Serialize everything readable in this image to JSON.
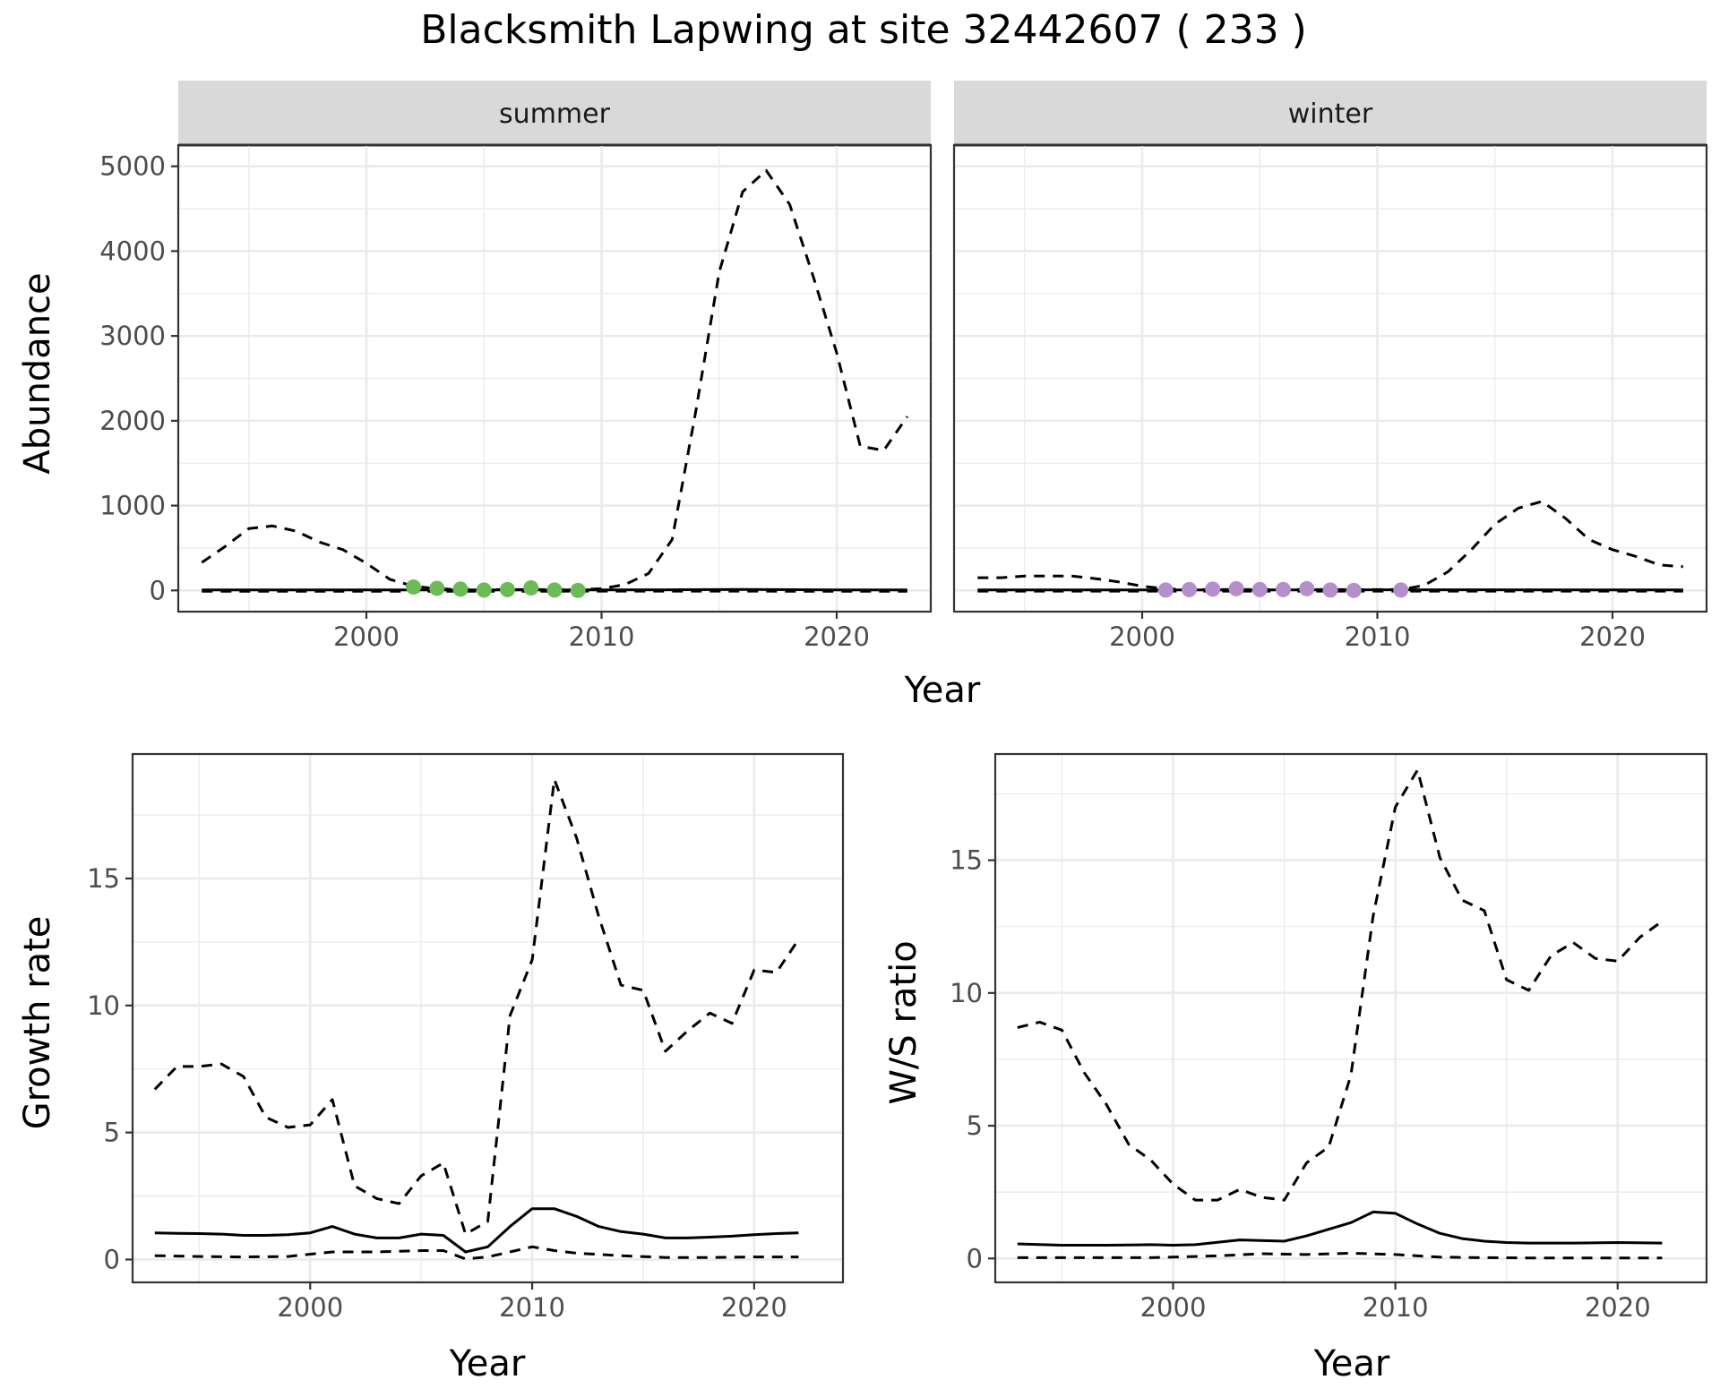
{
  "title": "Blacksmith Lapwing at site 32442607 ( 233 )",
  "colors": {
    "summer_points": "#6cbb57",
    "winter_points": "#b48fcc",
    "strip_bg": "#d9d9d9",
    "line": "#000000"
  },
  "chart_data": [
    {
      "id": "abundance-summer",
      "type": "line",
      "facet": "summer",
      "xlabel": "",
      "ylabel": "Abundance",
      "xlim": [
        1992,
        2024
      ],
      "ylim": [
        -250,
        5250
      ],
      "xticks": [
        2000,
        2010,
        2020
      ],
      "yticks": [
        0,
        1000,
        2000,
        3000,
        4000,
        5000
      ],
      "series": [
        {
          "name": "upper",
          "style": "dashed",
          "x": [
            1993,
            1994,
            1995,
            1996,
            1997,
            1998,
            1999,
            2000,
            2001,
            2002,
            2003,
            2004,
            2005,
            2006,
            2007,
            2008,
            2009,
            2010,
            2011,
            2012,
            2013,
            2014,
            2015,
            2016,
            2017,
            2018,
            2019,
            2020,
            2021,
            2022,
            2023
          ],
          "y": [
            330,
            520,
            730,
            760,
            700,
            570,
            480,
            320,
            130,
            50,
            20,
            10,
            10,
            10,
            10,
            10,
            10,
            20,
            70,
            200,
            600,
            2100,
            3750,
            4700,
            4950,
            4550,
            3700,
            2800,
            1700,
            1650,
            2050
          ]
        },
        {
          "name": "mean",
          "style": "solid",
          "x": [
            1993,
            1998,
            2003,
            2008,
            2013,
            2016,
            2020,
            2023
          ],
          "y": [
            5,
            6,
            6,
            5,
            8,
            12,
            6,
            5
          ]
        },
        {
          "name": "lower",
          "style": "dashed",
          "x": [
            1993,
            2003,
            2013,
            2023
          ],
          "y": [
            -10,
            -10,
            -8,
            -10
          ]
        },
        {
          "name": "observed",
          "style": "points",
          "x": [
            2002,
            2003,
            2004,
            2005,
            2006,
            2007,
            2008,
            2009
          ],
          "y": [
            40,
            25,
            15,
            5,
            10,
            30,
            5,
            0
          ]
        }
      ]
    },
    {
      "id": "abundance-winter",
      "type": "line",
      "facet": "winter",
      "xlabel": "Year",
      "ylabel": "",
      "xlim": [
        1992,
        2024
      ],
      "ylim": [
        -250,
        5250
      ],
      "xticks": [
        2000,
        2010,
        2020
      ],
      "yticks": [],
      "series": [
        {
          "name": "upper",
          "style": "dashed",
          "x": [
            1993,
            1994,
            1995,
            1996,
            1997,
            1998,
            1999,
            2000,
            2001,
            2002,
            2003,
            2004,
            2005,
            2006,
            2007,
            2008,
            2009,
            2010,
            2011,
            2012,
            2013,
            2014,
            2015,
            2016,
            2017,
            2018,
            2019,
            2020,
            2021,
            2022,
            2023
          ],
          "y": [
            150,
            150,
            170,
            170,
            170,
            140,
            100,
            50,
            20,
            10,
            10,
            10,
            10,
            10,
            10,
            10,
            10,
            10,
            10,
            60,
            220,
            480,
            780,
            970,
            1050,
            850,
            600,
            480,
            400,
            300,
            280
          ]
        },
        {
          "name": "mean",
          "style": "solid",
          "x": [
            1993,
            2003,
            2013,
            2023
          ],
          "y": [
            5,
            5,
            8,
            5
          ]
        },
        {
          "name": "lower",
          "style": "dashed",
          "x": [
            1993,
            2003,
            2013,
            2023
          ],
          "y": [
            -8,
            -8,
            -8,
            -8
          ]
        },
        {
          "name": "observed",
          "style": "points",
          "x": [
            2001,
            2002,
            2003,
            2004,
            2005,
            2006,
            2007,
            2008,
            2009,
            2011
          ],
          "y": [
            5,
            10,
            15,
            20,
            10,
            10,
            20,
            5,
            0,
            5
          ]
        }
      ]
    },
    {
      "id": "growth-rate",
      "type": "line",
      "xlabel": "Year",
      "ylabel": "Growth rate",
      "xlim": [
        1992,
        2024
      ],
      "ylim": [
        -0.9,
        19.9
      ],
      "xticks": [
        2000,
        2010,
        2020
      ],
      "yticks": [
        0,
        5,
        10,
        15
      ],
      "series": [
        {
          "name": "upper",
          "style": "dashed",
          "x": [
            1993,
            1994,
            1995,
            1996,
            1997,
            1998,
            1999,
            2000,
            2001,
            2002,
            2003,
            2004,
            2005,
            2006,
            2007,
            2008,
            2009,
            2010,
            2011,
            2012,
            2013,
            2014,
            2015,
            2016,
            2017,
            2018,
            2019,
            2020,
            2021,
            2022
          ],
          "y": [
            6.7,
            7.6,
            7.6,
            7.7,
            7.2,
            5.6,
            5.2,
            5.3,
            6.3,
            2.9,
            2.4,
            2.2,
            3.3,
            3.8,
            1.0,
            1.5,
            9.6,
            11.8,
            18.9,
            16.6,
            13.5,
            10.8,
            10.6,
            8.2,
            9.0,
            9.7,
            9.3,
            11.4,
            11.3,
            12.6
          ]
        },
        {
          "name": "mean",
          "style": "solid",
          "x": [
            1993,
            1994,
            1995,
            1996,
            1997,
            1998,
            1999,
            2000,
            2001,
            2002,
            2003,
            2004,
            2005,
            2006,
            2007,
            2008,
            2009,
            2010,
            2011,
            2012,
            2013,
            2014,
            2015,
            2016,
            2017,
            2018,
            2019,
            2020,
            2021,
            2022
          ],
          "y": [
            1.05,
            1.03,
            1.02,
            1.0,
            0.95,
            0.95,
            0.98,
            1.05,
            1.3,
            1.0,
            0.85,
            0.85,
            1.0,
            0.95,
            0.3,
            0.5,
            1.3,
            2.0,
            2.0,
            1.7,
            1.3,
            1.1,
            1.0,
            0.85,
            0.85,
            0.88,
            0.92,
            0.98,
            1.02,
            1.05
          ]
        },
        {
          "name": "lower",
          "style": "dashed",
          "x": [
            1993,
            1995,
            1997,
            1999,
            2001,
            2003,
            2005,
            2006,
            2007,
            2008,
            2009,
            2010,
            2011,
            2012,
            2014,
            2016,
            2018,
            2020,
            2022
          ],
          "y": [
            0.15,
            0.12,
            0.1,
            0.12,
            0.3,
            0.3,
            0.35,
            0.35,
            0.02,
            0.1,
            0.3,
            0.5,
            0.35,
            0.25,
            0.15,
            0.08,
            0.08,
            0.1,
            0.1
          ]
        }
      ]
    },
    {
      "id": "ws-ratio",
      "type": "line",
      "xlabel": "Year",
      "ylabel": "W/S ratio",
      "xlim": [
        1992,
        2024
      ],
      "ylim": [
        -0.9,
        19.0
      ],
      "xticks": [
        2000,
        2010,
        2020
      ],
      "yticks": [
        0,
        5,
        10,
        15
      ],
      "series": [
        {
          "name": "upper",
          "style": "dashed",
          "x": [
            1993,
            1994,
            1995,
            1996,
            1997,
            1998,
            1999,
            2000,
            2001,
            2002,
            2003,
            2004,
            2005,
            2006,
            2007,
            2008,
            2009,
            2010,
            2011,
            2012,
            2013,
            2014,
            2015,
            2016,
            2017,
            2018,
            2019,
            2020,
            2021,
            2022
          ],
          "y": [
            8.7,
            8.9,
            8.6,
            7.0,
            5.8,
            4.3,
            3.7,
            2.8,
            2.2,
            2.2,
            2.6,
            2.3,
            2.2,
            3.6,
            4.2,
            6.9,
            12.9,
            17.0,
            18.4,
            15.1,
            13.5,
            13.1,
            10.5,
            10.1,
            11.4,
            11.9,
            11.3,
            11.2,
            12.1,
            12.7
          ]
        },
        {
          "name": "mean",
          "style": "solid",
          "x": [
            1993,
            1995,
            1997,
            1999,
            2000,
            2001,
            2003,
            2005,
            2006,
            2007,
            2008,
            2009,
            2010,
            2011,
            2012,
            2013,
            2014,
            2015,
            2016,
            2018,
            2020,
            2022
          ],
          "y": [
            0.55,
            0.5,
            0.5,
            0.52,
            0.5,
            0.52,
            0.7,
            0.65,
            0.85,
            1.1,
            1.35,
            1.75,
            1.7,
            1.3,
            0.95,
            0.75,
            0.65,
            0.6,
            0.58,
            0.58,
            0.6,
            0.58
          ]
        },
        {
          "name": "lower",
          "style": "dashed",
          "x": [
            1993,
            1996,
            1999,
            2002,
            2004,
            2006,
            2008,
            2010,
            2012,
            2014,
            2016,
            2018,
            2020,
            2022
          ],
          "y": [
            0.03,
            0.03,
            0.03,
            0.1,
            0.18,
            0.15,
            0.2,
            0.15,
            0.05,
            0.03,
            0.02,
            0.02,
            0.02,
            0.02
          ]
        }
      ]
    }
  ]
}
